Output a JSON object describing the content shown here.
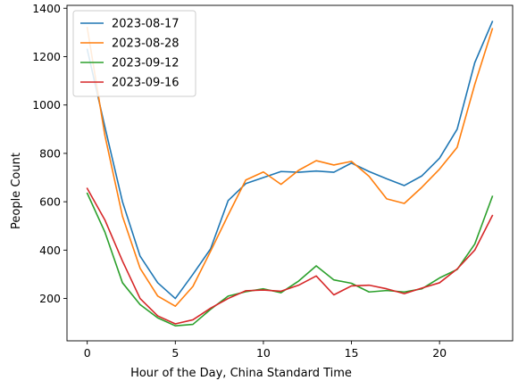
{
  "chart_data": {
    "type": "line",
    "title": "",
    "xlabel": "Hour of the Day, China Standard Time",
    "ylabel": "People Count",
    "xlim": [
      -1.15,
      24.15
    ],
    "ylim": [
      25,
      1412
    ],
    "xticks": [
      0,
      5,
      10,
      15,
      20
    ],
    "yticks": [
      200,
      400,
      600,
      800,
      1000,
      1200,
      1400
    ],
    "grid": false,
    "legend": {
      "placement": "top-left"
    },
    "x": [
      0,
      1,
      2,
      3,
      4,
      5,
      6,
      7,
      8,
      9,
      10,
      11,
      12,
      13,
      14,
      15,
      16,
      17,
      18,
      19,
      20,
      21,
      22,
      23
    ],
    "series": [
      {
        "name": "2023-08-17",
        "color": "#1f77b4",
        "values": [
          1230,
          910,
          600,
          375,
          265,
          200,
          300,
          405,
          605,
          675,
          700,
          725,
          722,
          727,
          722,
          760,
          725,
          695,
          667,
          707,
          780,
          900,
          1175,
          1345
        ]
      },
      {
        "name": "2023-08-28",
        "color": "#ff7f0e",
        "values": [
          1320,
          875,
          540,
          325,
          210,
          168,
          250,
          395,
          545,
          690,
          723,
          672,
          730,
          770,
          752,
          767,
          705,
          612,
          593,
          660,
          735,
          825,
          1085,
          1315
        ]
      },
      {
        "name": "2023-09-12",
        "color": "#2ca02c",
        "values": [
          635,
          475,
          265,
          175,
          120,
          87,
          93,
          155,
          210,
          228,
          240,
          224,
          272,
          335,
          277,
          263,
          227,
          233,
          227,
          240,
          285,
          320,
          425,
          622
        ]
      },
      {
        "name": "2023-09-16",
        "color": "#d62728",
        "values": [
          655,
          525,
          355,
          200,
          128,
          95,
          112,
          160,
          200,
          232,
          235,
          230,
          255,
          293,
          215,
          252,
          255,
          240,
          220,
          243,
          265,
          322,
          400,
          543
        ]
      }
    ]
  }
}
